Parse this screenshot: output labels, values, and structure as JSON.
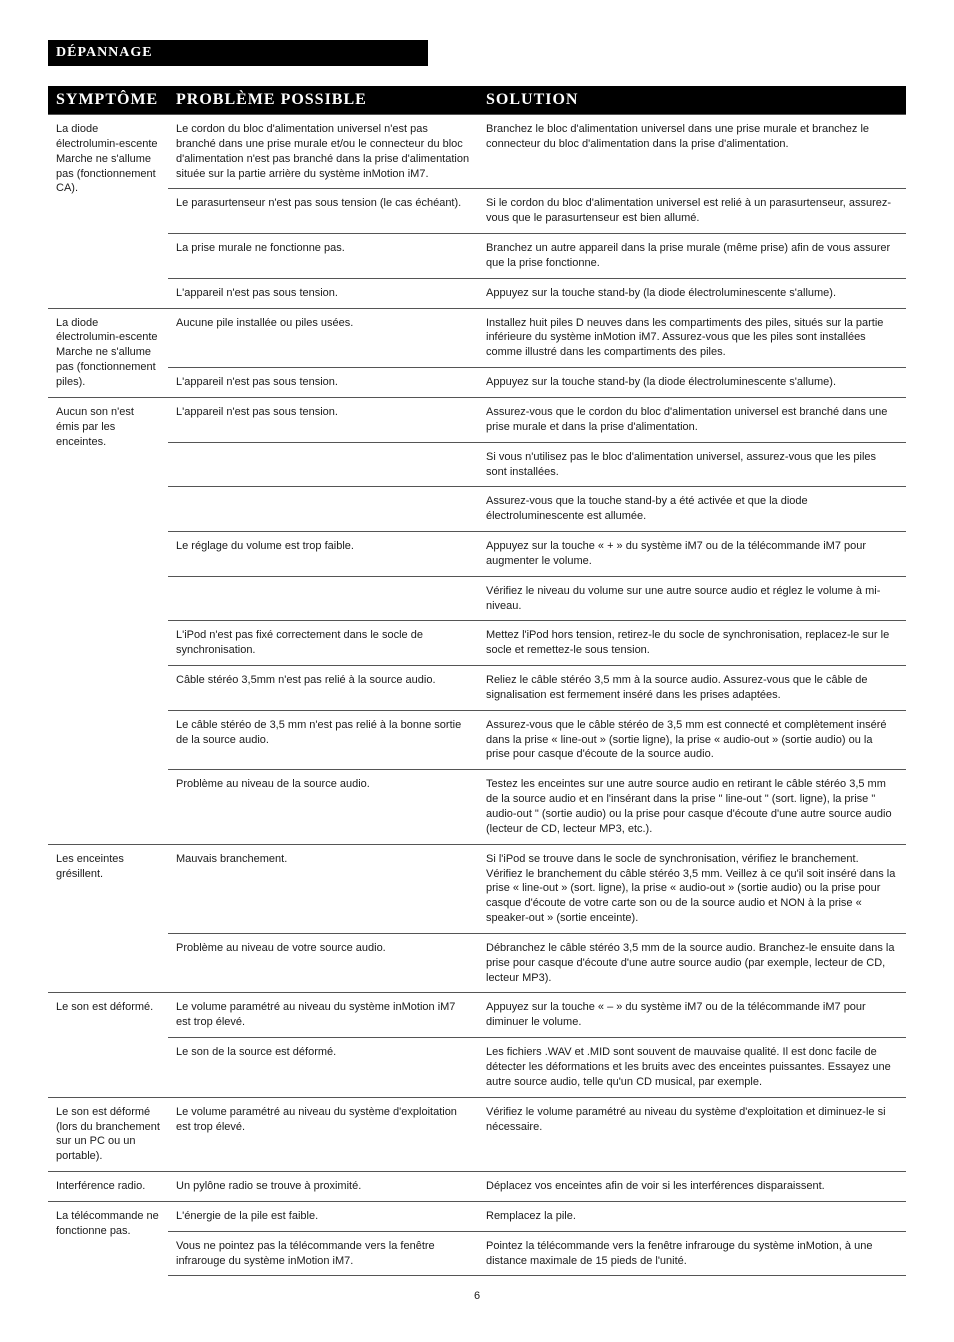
{
  "section_title": "DÉPANNAGE",
  "headers": {
    "symptom": "SYMPTÔME",
    "problem": "PROBLÈME POSSIBLE",
    "solution": "SOLUTION"
  },
  "groups": [
    {
      "symptom": "La diode électrolumin-escente Marche ne s'allume pas (fonctionnement CA).",
      "rows": [
        {
          "problem": "Le cordon du bloc d'alimentation universel n'est pas branché dans une prise murale et/ou le connecteur du bloc d'alimentation n'est pas branché dans la prise d'alimentation située sur la partie arrière du système inMotion iM7.",
          "solution": "Branchez le bloc d'alimentation universel dans une prise murale et branchez le connecteur du bloc d'alimentation dans la prise d'alimentation."
        },
        {
          "problem": "Le parasurtenseur n'est pas sous tension (le cas échéant).",
          "solution": "Si le cordon du bloc d'alimentation universel est relié à un parasurtenseur, assurez-vous que le parasurtenseur est bien allumé."
        },
        {
          "problem": "La prise murale ne fonctionne pas.",
          "solution": "Branchez un autre appareil dans la prise murale (même prise) afin de vous assurer que la prise fonctionne."
        },
        {
          "problem": "L'appareil n'est pas sous tension.",
          "solution": "Appuyez sur la touche stand-by (la diode électroluminescente s'allume)."
        }
      ]
    },
    {
      "symptom": "La diode électrolumin-escente Marche ne s'allume pas (fonctionnement piles).",
      "rows": [
        {
          "problem": "Aucune pile installée ou piles usées.",
          "solution": "Installez huit piles D neuves dans les compartiments des piles, situés sur la partie inférieure du système inMotion iM7. Assurez-vous que les piles sont installées comme illustré dans les compartiments des piles."
        },
        {
          "problem": "L'appareil n'est pas sous tension.",
          "solution": "Appuyez sur la touche stand-by (la diode électroluminescente s'allume)."
        }
      ]
    },
    {
      "symptom": "Aucun son n'est émis par les enceintes.",
      "rows": [
        {
          "problem": "L'appareil n'est pas sous tension.",
          "solution": "Assurez-vous que le cordon du bloc d'alimentation universel est branché dans une prise murale et dans la prise d'alimentation."
        },
        {
          "problem": "",
          "solution": "Si vous n'utilisez pas le bloc d'alimentation universel, assurez-vous que les piles sont installées."
        },
        {
          "problem": "",
          "solution": "Assurez-vous que la touche stand-by a été activée et que la diode électroluminescente est allumée."
        },
        {
          "problem": "Le réglage du volume est trop faible.",
          "solution": "Appuyez sur la touche « + » du système iM7 ou de la télécommande iM7 pour augmenter le volume."
        },
        {
          "problem": "",
          "solution": "Vérifiez le niveau du volume sur une autre source audio et réglez le volume à mi-niveau."
        },
        {
          "problem": "L'iPod n'est pas fixé correctement dans le socle de synchronisation.",
          "solution": "Mettez l'iPod hors tension, retirez-le du socle de synchronisation, replacez-le sur le socle et remettez-le sous tension."
        },
        {
          "problem": "Câble stéréo 3,5mm n'est pas relié à la source audio.",
          "solution": "Reliez le câble stéréo 3,5 mm à la source audio. Assurez-vous que le câble de signalisation est fermement inséré dans les prises adaptées."
        },
        {
          "problem": "Le câble stéréo de 3,5 mm n'est pas relié à la bonne sortie de la source audio.",
          "solution": "Assurez-vous que le câble stéréo de 3,5 mm est connecté et complètement inséré dans la prise « line-out » (sortie ligne), la prise « audio-out » (sortie audio) ou la prise pour casque d'écoute de la source audio."
        },
        {
          "problem": "Problème au niveau de la source audio.",
          "solution": "Testez les enceintes sur une autre source audio en retirant le câble stéréo 3,5 mm de la source audio et en l'insérant dans la prise \" line-out \" (sort. ligne), la prise \" audio-out \" (sortie audio) ou la prise pour casque d'écoute d'une autre source audio (lecteur de CD, lecteur MP3, etc.)."
        }
      ]
    },
    {
      "symptom": "Les enceintes grésillent.",
      "rows": [
        {
          "problem": "Mauvais branchement.",
          "solution": "Si l'iPod se trouve dans le socle de synchronisation, vérifiez le branchement. Vérifiez le branchement du câble stéréo 3,5 mm. Veillez à ce qu'il soit inséré dans la prise « line-out » (sort. ligne), la prise « audio-out » (sortie audio) ou la prise pour casque d'écoute de votre carte son ou de la source audio et NON à la prise « speaker-out » (sortie enceinte)."
        },
        {
          "problem": "Problème au niveau de votre source audio.",
          "solution": "Débranchez le câble stéréo 3,5 mm de la source audio. Branchez-le ensuite dans la prise pour casque d'écoute d'une autre source audio (par exemple, lecteur de CD, lecteur MP3)."
        }
      ]
    },
    {
      "symptom": "Le son est déformé.",
      "rows": [
        {
          "problem": "Le volume paramétré au niveau du système inMotion iM7 est trop élevé.",
          "solution": "Appuyez sur la touche « – » du système iM7 ou de la télécommande iM7 pour diminuer le volume."
        },
        {
          "problem": "Le son de la source est déformé.",
          "solution": "Les fichiers .WAV et .MID sont souvent de mauvaise qualité. Il est donc facile de détecter les déformations et les bruits avec des enceintes puissantes. Essayez une autre source audio, telle qu'un CD musical, par exemple."
        }
      ]
    },
    {
      "symptom": "Le son est déformé (lors du branchement sur un PC ou un portable).",
      "rows": [
        {
          "problem": "Le volume paramétré au niveau du système d'exploitation est trop élevé.",
          "solution": "Vérifiez le volume paramétré au niveau du système d'exploitation et diminuez-le si nécessaire."
        }
      ]
    },
    {
      "symptom": "Interférence radio.",
      "rows": [
        {
          "problem": "Un pylône radio se trouve à proximité.",
          "solution": "Déplacez vos enceintes afin de voir si les interférences disparaissent."
        }
      ]
    },
    {
      "symptom": "La télécommande ne fonctionne pas.",
      "rows": [
        {
          "problem": "L'énergie de la pile est faible.",
          "solution": "Remplacez la pile."
        },
        {
          "problem": "Vous ne pointez pas la télécommande vers la fenêtre infrarouge du système inMotion iM7.",
          "solution": "Pointez la télécommande vers la fenêtre infrarouge du système inMotion, à une distance maximale de 15 pieds de l'unité."
        }
      ]
    }
  ],
  "page_number": "6"
}
